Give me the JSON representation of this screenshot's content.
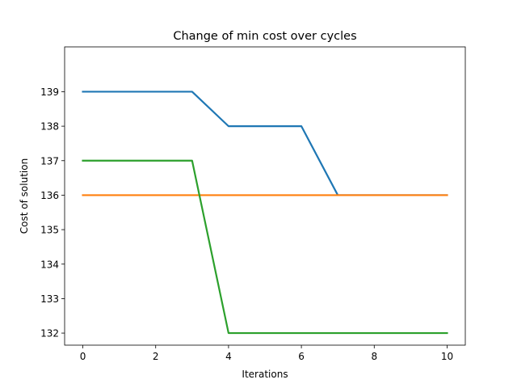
{
  "chart_data": {
    "type": "line",
    "title": "Change of min cost over cycles",
    "xlabel": "Iterations",
    "ylabel": "Cost of solution",
    "xlim": [
      -0.5,
      10.5
    ],
    "ylim": [
      131.65,
      140.3
    ],
    "xticks": [
      0,
      2,
      4,
      6,
      8,
      10
    ],
    "yticks": [
      132,
      133,
      134,
      135,
      136,
      137,
      138,
      139
    ],
    "grid": false,
    "x": [
      0,
      1,
      2,
      3,
      4,
      5,
      6,
      7,
      8,
      9,
      10
    ],
    "series": [
      {
        "color": "#1f77b4",
        "values": [
          139,
          139,
          139,
          139,
          138,
          138,
          138,
          136,
          136,
          136,
          136
        ]
      },
      {
        "color": "#ff7f0e",
        "values": [
          136,
          136,
          136,
          136,
          136,
          136,
          136,
          136,
          136,
          136,
          136
        ]
      },
      {
        "color": "#2ca02c",
        "values": [
          137,
          137,
          137,
          137,
          132,
          132,
          132,
          132,
          132,
          132,
          132
        ]
      }
    ]
  }
}
